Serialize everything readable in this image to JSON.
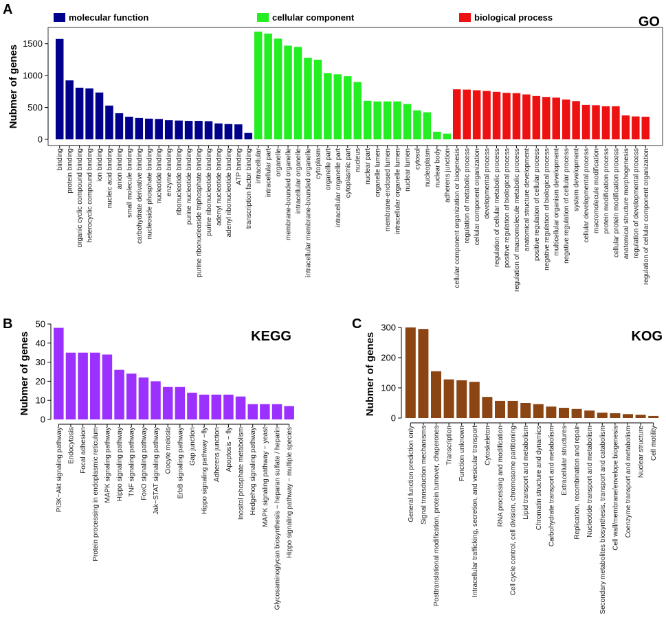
{
  "chart_data": [
    {
      "panel": "A",
      "type": "bar",
      "title": "GO",
      "ylabel": "Nubmer of genes",
      "xlabel": "",
      "ylim": [
        0,
        1750
      ],
      "yticks": [
        0,
        500,
        1000,
        1500
      ],
      "legend_position": "top",
      "legend": [
        {
          "name": "molecular function",
          "color": "#00008B"
        },
        {
          "name": "cellular component",
          "color": "#22EE22"
        },
        {
          "name": "biological process",
          "color": "#EE1111"
        }
      ],
      "series": [
        {
          "name": "molecular function",
          "color": "#00008B",
          "categories": [
            "binding",
            "protein binding",
            "organic cyclic compound binding",
            "heterocyclic compound binding",
            "ion binding",
            "nucleic acid binding",
            "anion binding",
            "small molecule binding",
            "carbohydrate derivative binding",
            "nucleoside phosphate binding",
            "nucleotide binding",
            "enzyme binding",
            "ribonucleotide binding",
            "purine nucleotide binding",
            "purine ribonucleoside triphosphate binding",
            "purine ribonucleotide binding",
            "adenyl nucleotide binding",
            "adenyl ribonucleotide binding",
            "ATP binding",
            "transcription factor binding"
          ],
          "values": [
            1575,
            925,
            810,
            800,
            735,
            530,
            410,
            355,
            335,
            325,
            320,
            300,
            295,
            290,
            290,
            285,
            250,
            240,
            235,
            100
          ]
        },
        {
          "name": "cellular component",
          "color": "#22EE22",
          "categories": [
            "intracellular",
            "intracellular part",
            "organelle",
            "membrane-bounded organelle",
            "intracellular organelle",
            "intracellular membrane-bounded organelle",
            "cytoplasm",
            "organelle part",
            "intracellular organelle part",
            "cytoplasmic part",
            "nucleus",
            "nuclear part",
            "organelle lumen",
            "membrane-enclosed lumen",
            "intracellular organelle lumen",
            "nuclear lumen",
            "cytosol",
            "nucleoplasm",
            "nuclear body",
            "adherens junction"
          ],
          "values": [
            1690,
            1660,
            1580,
            1470,
            1450,
            1280,
            1250,
            1040,
            1020,
            990,
            900,
            605,
            595,
            595,
            595,
            555,
            455,
            425,
            120,
            90
          ]
        },
        {
          "name": "biological process",
          "color": "#EE1111",
          "categories": [
            "cellular component organization or biogenesis",
            "regulation of metabolic process",
            "cellular component organization",
            "developmental process",
            "regulation of cellular metabolic process",
            "positive regulation of biological process",
            "regulation of macromolecule metabolic process",
            "anatomical structure development",
            "positive regulation of cellular process",
            "negative regulation of biological process",
            "multicellular organism development",
            "negative regulation of cellular process",
            "system development",
            "cellular developmental process",
            "macromolecule modification",
            "protein modification process",
            "cellular protein modification process",
            "anatomical structure morphogenesis",
            "regulation of developmental process",
            "regulation of cellular component organization"
          ],
          "values": [
            785,
            780,
            770,
            760,
            745,
            730,
            725,
            705,
            680,
            665,
            655,
            625,
            600,
            540,
            535,
            520,
            520,
            375,
            360,
            355
          ]
        }
      ]
    },
    {
      "panel": "B",
      "type": "bar",
      "title": "KEGG",
      "ylabel": "Nubmer of genes",
      "xlabel": "",
      "ylim": [
        0,
        50
      ],
      "yticks": [
        0,
        10,
        20,
        30,
        40,
        50
      ],
      "color": "#9B30FF",
      "categories": [
        "PI3K−Akt signaling pathway",
        "Endocytosis",
        "Focal adhesion",
        "Protein processing in endoplasmic reticulum",
        "MAPK signaling pathway",
        "Hippo signaling pathway",
        "TNF signaling pathway",
        "FoxO signaling pathway",
        "Jak−STAT signaling pathway",
        "Oocyte meiosis",
        "ErbB signaling pathway",
        "Gap junction",
        "Hippo signaling pathway −fly",
        "Adherens junction",
        "Apoptosis − fly",
        "Inositol phosphate metabolism",
        "Hedgehog signaling pathway",
        "MAPK signaling pathway − yeast",
        "Glycosaminoglycan biosynthesis − heparan sulfate / heparin",
        "Hippo signaling pathway − multiple species"
      ],
      "values": [
        48,
        35,
        35,
        35,
        34,
        26,
        24,
        22,
        20,
        17,
        17,
        14,
        13,
        13,
        13,
        12,
        8,
        8,
        8,
        7
      ]
    },
    {
      "panel": "C",
      "type": "bar",
      "title": "KOG",
      "ylabel": "Nubmer of genes",
      "xlabel": "",
      "ylim": [
        0,
        300
      ],
      "yticks": [
        0,
        100,
        200,
        300
      ],
      "color": "#8B4513",
      "categories": [
        "General function prediction only",
        "Signal transduction mechanisms",
        "Posttranslational modification, protein turnover, chaperones",
        "Transcription",
        "Function unknown",
        "Intracellular trafficking, secretion, and vesicular transport",
        "Cytoskeleton",
        "RNA processing and modification",
        "Cell cycle control, cell division, chromosome partitioning",
        "Lipid transport and metabolism",
        "Chromatin structure and dynamics",
        "Carbohydrate transport and metabolism",
        "Extracellular structures",
        "Replication, recombination and repair",
        "Nucleotide transport and metabolism",
        "Secondary metabolites biosynthesis, transport and catabolism",
        "Cell wall/membrane/envelope biogenesis",
        "Coenzyme transport and metabolism",
        "Nuclear structure",
        "Cell motility"
      ],
      "values": [
        300,
        295,
        155,
        128,
        125,
        120,
        70,
        57,
        57,
        50,
        46,
        38,
        34,
        30,
        25,
        18,
        16,
        13,
        11,
        7
      ]
    }
  ]
}
